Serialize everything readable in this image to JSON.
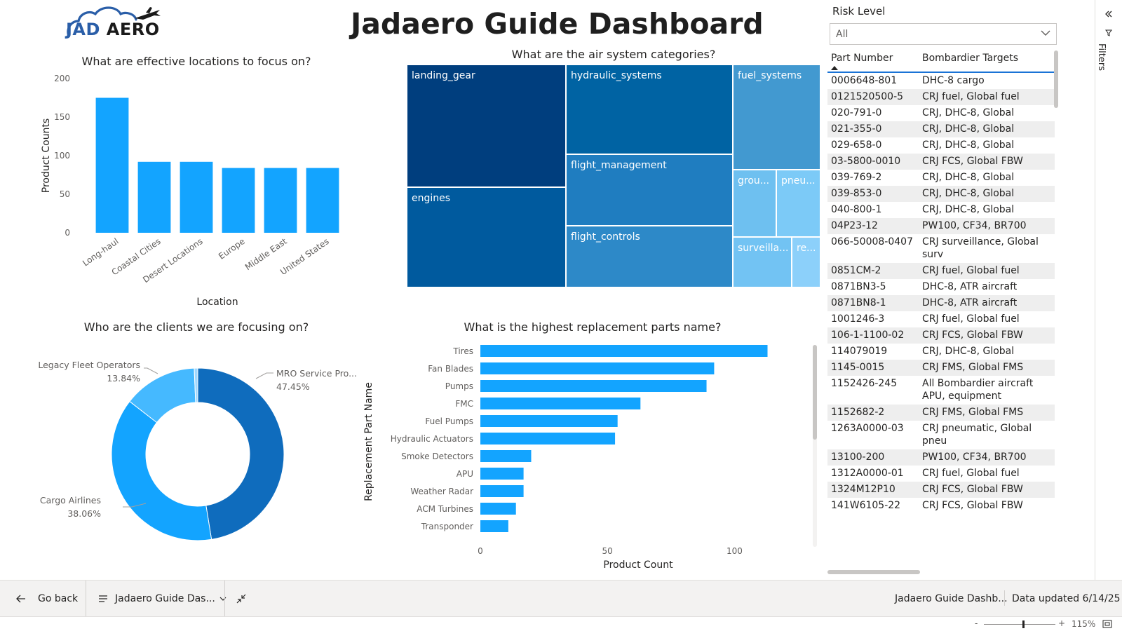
{
  "logo": {
    "text_left": "JAD",
    "text_right": "AERO"
  },
  "page_title": "Jadaero Guide Dashboard",
  "colors": {
    "bar": "#13a4ff",
    "donut_mro": "#0f6cbd",
    "donut_cargo": "#13a4ff",
    "donut_legacy": "#45b9ff"
  },
  "locations_chart": {
    "title": "What are effective locations to focus on?",
    "chart_data": {
      "type": "bar",
      "title": "What are effective locations to focus on?",
      "xlabel": "Location",
      "ylabel": "Product Counts",
      "categories": [
        "Long-haul",
        "Coastal Cities",
        "Desert Locations",
        "Europe",
        "Middle East",
        "United States"
      ],
      "values": [
        175,
        92,
        92,
        84,
        84,
        84
      ],
      "ylim": [
        0,
        200
      ],
      "yticks": [
        "0",
        "50",
        "100",
        "150",
        "200"
      ]
    }
  },
  "treemap": {
    "title": "What are the air system categories?",
    "cells": [
      {
        "label": "landing_gear",
        "color": "#003e7e"
      },
      {
        "label": "engines",
        "color": "#005a9e"
      },
      {
        "label": "hydraulic_systems",
        "color": "#0063a3"
      },
      {
        "label": "flight_management",
        "color": "#1f7dc0"
      },
      {
        "label": "flight_controls",
        "color": "#2d89c8"
      },
      {
        "label": "fuel_systems",
        "color": "#4299d0"
      },
      {
        "label": "grou...",
        "color": "#6ec0f0"
      },
      {
        "label": "pneu...",
        "color": "#7ccaf7"
      },
      {
        "label": "surveilla...",
        "color": "#72c3f3"
      },
      {
        "label": "re...",
        "color": "#8cd0fa"
      }
    ]
  },
  "clients_chart": {
    "title": "Who are the clients we are focusing on?",
    "chart_data": {
      "type": "pie",
      "title": "Who are the clients we are focusing on?",
      "donut": true,
      "slices": [
        {
          "name": "MRO Service Pro...",
          "value": 47.45,
          "label": "47.45%"
        },
        {
          "name": "Cargo Airlines",
          "value": 38.06,
          "label": "38.06%"
        },
        {
          "name": "Legacy Fleet Operators",
          "value": 13.84,
          "label": "13.84%"
        },
        {
          "name": "",
          "value": 0.65,
          "label": ""
        }
      ]
    }
  },
  "parts_chart": {
    "title": "What is the highest replacement parts name?",
    "chart_data": {
      "type": "bar",
      "orientation": "horizontal",
      "title": "What is the highest replacement parts name?",
      "xlabel": "Product Count",
      "ylabel": "Replacement Part Name",
      "categories": [
        "Tires",
        "Fan Blades",
        "Pumps",
        "FMC",
        "Fuel Pumps",
        "Hydraulic Actuators",
        "Smoke Detectors",
        "APU",
        "Weather Radar",
        "ACM Turbines",
        "Transponder"
      ],
      "values": [
        113,
        92,
        89,
        63,
        54,
        53,
        20,
        17,
        17,
        14,
        11
      ],
      "xlim": [
        0,
        125
      ],
      "xticks": [
        "0",
        "50",
        "100"
      ]
    }
  },
  "slicer": {
    "label": "Risk Level",
    "value": "All"
  },
  "table": {
    "headers": [
      "Part Number",
      "Bombardier Targets"
    ],
    "rows": [
      [
        "0006648-801",
        "DHC-8 cargo"
      ],
      [
        "0121520500-5",
        "CRJ fuel, Global fuel"
      ],
      [
        "020-791-0",
        "CRJ, DHC-8, Global"
      ],
      [
        "021-355-0",
        "CRJ, DHC-8, Global"
      ],
      [
        "029-658-0",
        "CRJ, DHC-8, Global"
      ],
      [
        "03-5800-0010",
        "CRJ FCS, Global FBW"
      ],
      [
        "039-769-2",
        "CRJ, DHC-8, Global"
      ],
      [
        "039-853-0",
        "CRJ, DHC-8, Global"
      ],
      [
        "040-800-1",
        "CRJ, DHC-8, Global"
      ],
      [
        "04P23-12",
        "PW100, CF34, BR700"
      ],
      [
        "066-50008-0407",
        "CRJ surveillance, Global surv"
      ],
      [
        "0851CM-2",
        "CRJ fuel, Global fuel"
      ],
      [
        "0871BN3-5",
        "DHC-8, ATR aircraft"
      ],
      [
        "0871BN8-1",
        "DHC-8, ATR aircraft"
      ],
      [
        "1001246-3",
        "CRJ fuel, Global fuel"
      ],
      [
        "106-1-1100-02",
        "CRJ FCS, Global FBW"
      ],
      [
        "114079019",
        "CRJ, DHC-8, Global"
      ],
      [
        "1145-0015",
        "CRJ FMS, Global FMS"
      ],
      [
        "1152426-245",
        "All Bombardier aircraft APU, equipment"
      ],
      [
        "1152682-2",
        "CRJ FMS, Global FMS"
      ],
      [
        "1263A0000-03",
        "CRJ pneumatic, Global pneu"
      ],
      [
        "13100-200",
        "PW100, CF34, BR700"
      ],
      [
        "1312A0000-01",
        "CRJ fuel, Global fuel"
      ],
      [
        "1324M12P10",
        "CRJ FCS, Global FBW"
      ],
      [
        "141W6105-22",
        "CRJ FCS, Global FBW"
      ]
    ]
  },
  "filters_pane": {
    "label": "Filters"
  },
  "footer": {
    "back_label": "Go back",
    "page_label": "Jadaero Guide Das...",
    "report_name": "Jadaero Guide Dashb...",
    "data_updated": "Data updated 6/14/25"
  },
  "zoom": {
    "minus": "-",
    "plus": "+",
    "level": "115%",
    "fraction": 0.55
  }
}
